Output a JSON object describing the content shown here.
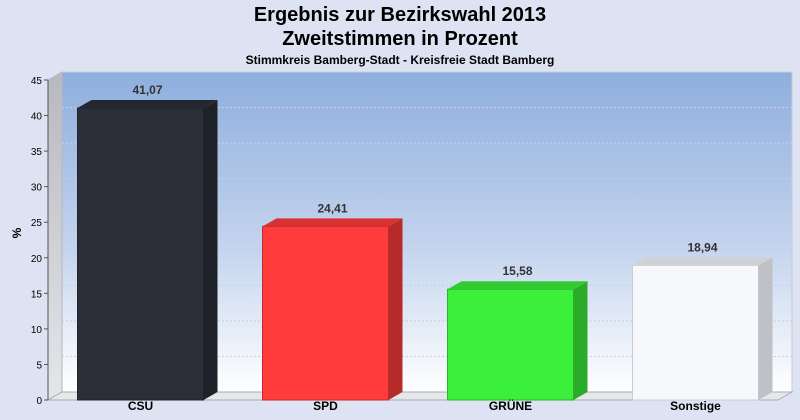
{
  "chart_data": {
    "type": "bar",
    "title": "Ergebnis zur Bezirkswahl 2013",
    "title2": "Zweitstimmen in Prozent",
    "subtitle": "Stimmkreis Bamberg-Stadt - Kreisfreie Stadt Bamberg",
    "ylabel": "%",
    "xlabel": "",
    "ylim": [
      0,
      45
    ],
    "yticks": [
      0,
      5,
      10,
      15,
      20,
      25,
      30,
      35,
      40,
      45
    ],
    "categories": [
      "CSU",
      "SPD",
      "GRÜNE",
      "Sonstige"
    ],
    "values": [
      41.07,
      24.41,
      15.58,
      18.94
    ],
    "value_labels": [
      "41,07",
      "24,41",
      "15,58",
      "18,94"
    ],
    "colors": [
      "#2b2e38",
      "#ff3b3b",
      "#3bef3b",
      "#f6f8fc"
    ],
    "grid": true,
    "legend": "none"
  }
}
